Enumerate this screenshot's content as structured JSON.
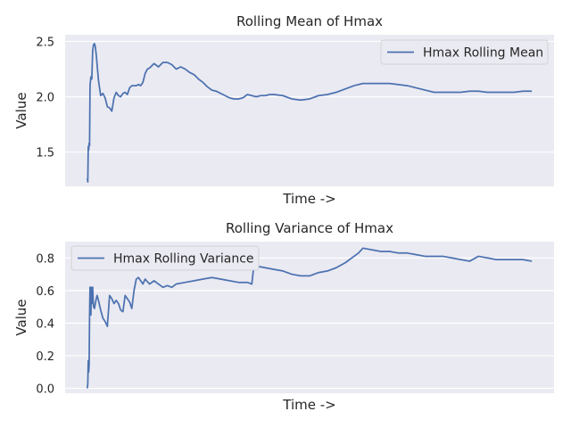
{
  "style": {
    "axes_background": "#eaeaf2",
    "grid_color": "#ffffff",
    "line_color": "#4c72b0",
    "text_color": "#262626"
  },
  "chart_data": [
    {
      "type": "line",
      "title": "Rolling Mean of Hmax",
      "xlabel": "Time ->",
      "ylabel": "Value",
      "ylim": [
        1.19,
        2.56
      ],
      "yticks": [
        1.5,
        2.0,
        2.5
      ],
      "ytick_labels": [
        "1.5",
        "2.0",
        "2.5"
      ],
      "xlim": [
        -0.05,
        1.05
      ],
      "grid": true,
      "xticks_visible": false,
      "legend_position": "upper right",
      "series": [
        {
          "name": "Hmax Rolling Mean",
          "x": [
            0.0,
            0.001,
            0.002,
            0.003,
            0.004,
            0.005,
            0.006,
            0.008,
            0.01,
            0.012,
            0.014,
            0.016,
            0.018,
            0.02,
            0.025,
            0.03,
            0.035,
            0.04,
            0.045,
            0.05,
            0.055,
            0.06,
            0.065,
            0.07,
            0.075,
            0.08,
            0.085,
            0.09,
            0.095,
            0.1,
            0.105,
            0.11,
            0.115,
            0.12,
            0.125,
            0.13,
            0.135,
            0.14,
            0.15,
            0.16,
            0.17,
            0.18,
            0.19,
            0.2,
            0.21,
            0.22,
            0.23,
            0.24,
            0.25,
            0.26,
            0.27,
            0.28,
            0.29,
            0.3,
            0.31,
            0.32,
            0.33,
            0.34,
            0.35,
            0.36,
            0.37,
            0.38,
            0.39,
            0.4,
            0.41,
            0.42,
            0.44,
            0.46,
            0.48,
            0.5,
            0.52,
            0.54,
            0.56,
            0.58,
            0.6,
            0.62,
            0.64,
            0.66,
            0.68,
            0.7,
            0.72,
            0.74,
            0.76,
            0.78,
            0.8,
            0.82,
            0.84,
            0.86,
            0.88,
            0.9,
            0.92,
            0.94,
            0.96,
            0.98,
            1.0
          ],
          "values": [
            1.26,
            1.23,
            1.55,
            1.52,
            1.58,
            1.56,
            2.1,
            2.18,
            2.16,
            2.42,
            2.47,
            2.48,
            2.45,
            2.38,
            2.15,
            2.01,
            2.03,
            1.99,
            1.91,
            1.9,
            1.87,
            1.99,
            2.04,
            2.01,
            2.0,
            2.03,
            2.04,
            2.02,
            2.08,
            2.1,
            2.1,
            2.1,
            2.11,
            2.1,
            2.13,
            2.21,
            2.25,
            2.26,
            2.3,
            2.27,
            2.31,
            2.31,
            2.29,
            2.25,
            2.27,
            2.25,
            2.22,
            2.2,
            2.16,
            2.13,
            2.09,
            2.06,
            2.05,
            2.03,
            2.01,
            1.99,
            1.98,
            1.98,
            1.99,
            2.02,
            2.01,
            2.0,
            2.01,
            2.01,
            2.02,
            2.02,
            2.01,
            1.98,
            1.97,
            1.98,
            2.01,
            2.02,
            2.04,
            2.07,
            2.1,
            2.12,
            2.12,
            2.12,
            2.12,
            2.11,
            2.1,
            2.08,
            2.06,
            2.04,
            2.04,
            2.04,
            2.04,
            2.05,
            2.05,
            2.04,
            2.04,
            2.04,
            2.04,
            2.05,
            2.05
          ]
        }
      ]
    },
    {
      "type": "line",
      "title": "Rolling Variance of Hmax",
      "xlabel": "Time ->",
      "ylabel": "Value",
      "ylim": [
        -0.03,
        0.9
      ],
      "yticks": [
        0.0,
        0.2,
        0.4,
        0.6,
        0.8
      ],
      "ytick_labels": [
        "0.0",
        "0.2",
        "0.4",
        "0.6",
        "0.8"
      ],
      "xlim": [
        -0.05,
        1.05
      ],
      "grid": true,
      "xticks_visible": false,
      "legend_position": "upper left",
      "series": [
        {
          "name": "Hmax Rolling Variance",
          "x": [
            0.0,
            0.001,
            0.002,
            0.003,
            0.004,
            0.005,
            0.006,
            0.007,
            0.008,
            0.009,
            0.01,
            0.011,
            0.012,
            0.013,
            0.014,
            0.016,
            0.018,
            0.02,
            0.022,
            0.025,
            0.03,
            0.035,
            0.04,
            0.045,
            0.05,
            0.055,
            0.06,
            0.065,
            0.07,
            0.075,
            0.08,
            0.085,
            0.09,
            0.095,
            0.1,
            0.105,
            0.11,
            0.115,
            0.12,
            0.125,
            0.13,
            0.14,
            0.15,
            0.16,
            0.17,
            0.18,
            0.19,
            0.2,
            0.22,
            0.24,
            0.26,
            0.28,
            0.3,
            0.32,
            0.34,
            0.36,
            0.37,
            0.375,
            0.38,
            0.4,
            0.42,
            0.44,
            0.46,
            0.48,
            0.5,
            0.52,
            0.54,
            0.56,
            0.58,
            0.6,
            0.61,
            0.62,
            0.64,
            0.66,
            0.68,
            0.7,
            0.72,
            0.74,
            0.76,
            0.78,
            0.8,
            0.82,
            0.84,
            0.86,
            0.88,
            0.9,
            0.92,
            0.94,
            0.96,
            0.98,
            1.0
          ],
          "values": [
            0.0,
            0.03,
            0.17,
            0.1,
            0.14,
            0.45,
            0.62,
            0.48,
            0.45,
            0.62,
            0.61,
            0.52,
            0.62,
            0.55,
            0.5,
            0.49,
            0.52,
            0.55,
            0.57,
            0.54,
            0.48,
            0.43,
            0.41,
            0.38,
            0.57,
            0.55,
            0.52,
            0.54,
            0.52,
            0.48,
            0.47,
            0.57,
            0.55,
            0.53,
            0.49,
            0.6,
            0.67,
            0.68,
            0.66,
            0.64,
            0.67,
            0.64,
            0.66,
            0.64,
            0.62,
            0.63,
            0.62,
            0.64,
            0.65,
            0.66,
            0.67,
            0.68,
            0.67,
            0.66,
            0.65,
            0.65,
            0.64,
            0.76,
            0.75,
            0.74,
            0.73,
            0.72,
            0.7,
            0.69,
            0.69,
            0.71,
            0.72,
            0.74,
            0.77,
            0.81,
            0.83,
            0.86,
            0.85,
            0.84,
            0.84,
            0.83,
            0.83,
            0.82,
            0.81,
            0.81,
            0.81,
            0.8,
            0.79,
            0.78,
            0.81,
            0.8,
            0.79,
            0.79,
            0.79,
            0.79,
            0.78
          ]
        }
      ]
    }
  ]
}
